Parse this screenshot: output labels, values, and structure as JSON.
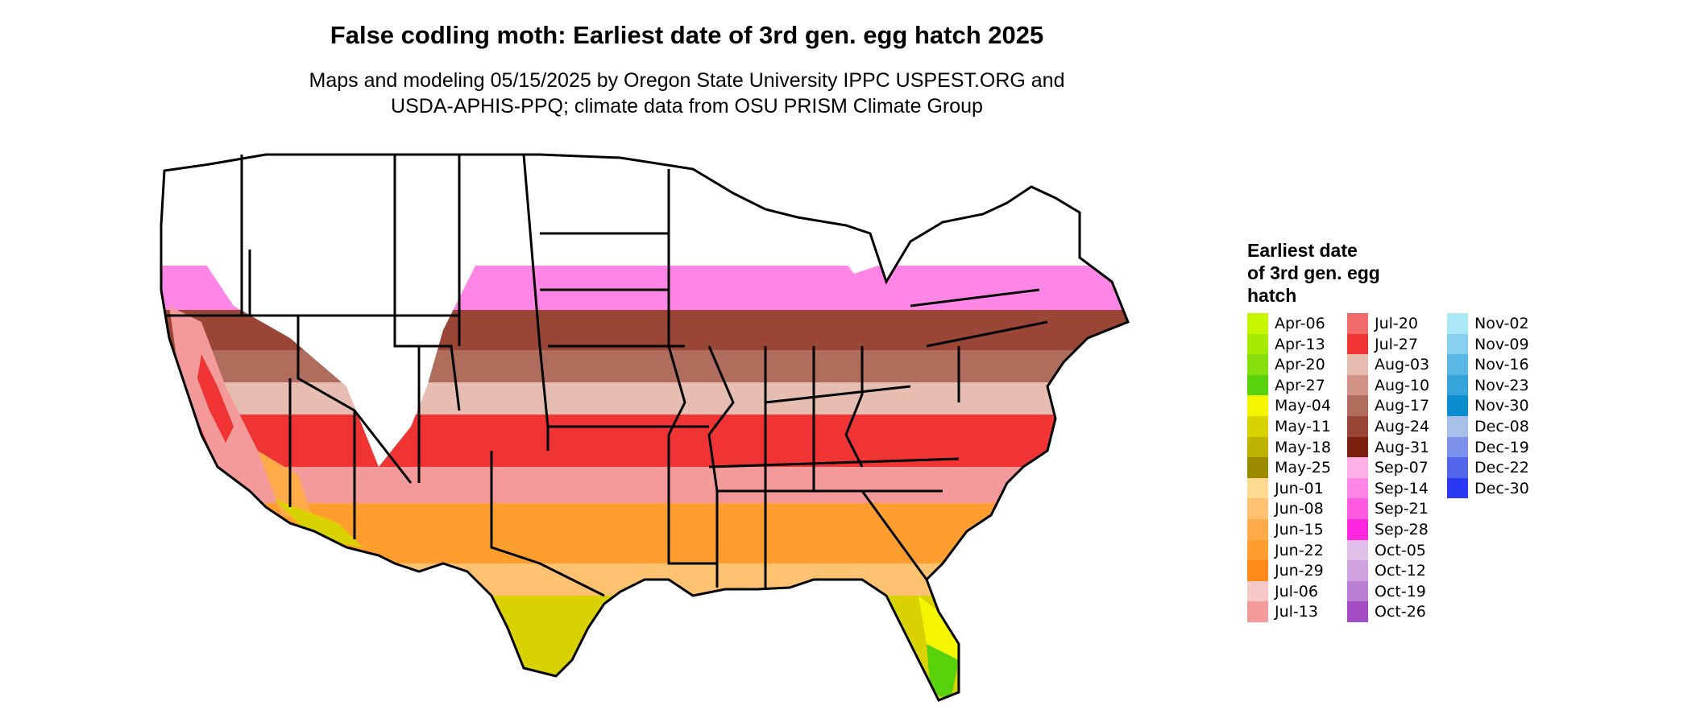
{
  "title": "False codling moth: Earliest date of 3rd gen. egg hatch 2025",
  "subtitle_line1": "Maps and modeling 05/15/2025 by Oregon State University IPPC USPEST.ORG and",
  "subtitle_line2": "USDA-APHIS-PPQ; climate data from OSU PRISM Climate Group",
  "legend": {
    "title_line1": "Earliest date",
    "title_line2": "of 3rd gen. egg",
    "title_line3": "hatch",
    "columns": [
      [
        {
          "label": "Apr-06",
          "color": "#c6f500"
        },
        {
          "label": "Apr-13",
          "color": "#a6ea00"
        },
        {
          "label": "Apr-20",
          "color": "#86de0c"
        },
        {
          "label": "Apr-27",
          "color": "#58d20a"
        },
        {
          "label": "May-04",
          "color": "#f5f500"
        },
        {
          "label": "May-11",
          "color": "#d9d200"
        },
        {
          "label": "May-18",
          "color": "#bfb100"
        },
        {
          "label": "May-25",
          "color": "#9c8c00"
        },
        {
          "label": "Jun-01",
          "color": "#ffd990"
        },
        {
          "label": "Jun-08",
          "color": "#ffc270"
        },
        {
          "label": "Jun-15",
          "color": "#ffab4a"
        },
        {
          "label": "Jun-22",
          "color": "#ff9d2e"
        },
        {
          "label": "Jun-29",
          "color": "#ff8a1a"
        },
        {
          "label": "Jul-06",
          "color": "#f6c8c8"
        },
        {
          "label": "Jul-13",
          "color": "#f49a9a"
        }
      ],
      [
        {
          "label": "Jul-20",
          "color": "#f06a6a"
        },
        {
          "label": "Jul-27",
          "color": "#f03434"
        },
        {
          "label": "Aug-03",
          "color": "#e7bdb2"
        },
        {
          "label": "Aug-10",
          "color": "#d19484"
        },
        {
          "label": "Aug-17",
          "color": "#b06c5c"
        },
        {
          "label": "Aug-24",
          "color": "#9a4636"
        },
        {
          "label": "Aug-31",
          "color": "#7d2010"
        },
        {
          "label": "Sep-07",
          "color": "#ffb0e6"
        },
        {
          "label": "Sep-14",
          "color": "#ff86e6"
        },
        {
          "label": "Sep-21",
          "color": "#ff5ae0"
        },
        {
          "label": "Sep-28",
          "color": "#ff26e2"
        },
        {
          "label": "Oct-05",
          "color": "#e0c0ea"
        },
        {
          "label": "Oct-12",
          "color": "#d0a2e0"
        },
        {
          "label": "Oct-19",
          "color": "#bb80d4"
        },
        {
          "label": "Oct-26",
          "color": "#a44cc4"
        }
      ],
      [
        {
          "label": "Nov-02",
          "color": "#aae8f8"
        },
        {
          "label": "Nov-09",
          "color": "#86d0ee"
        },
        {
          "label": "Nov-16",
          "color": "#5ab8e4"
        },
        {
          "label": "Nov-23",
          "color": "#34a4da"
        },
        {
          "label": "Nov-30",
          "color": "#0a8ed0"
        },
        {
          "label": "Dec-08",
          "color": "#a6c0ea"
        },
        {
          "label": "Dec-19",
          "color": "#7c92ea"
        },
        {
          "label": "Dec-22",
          "color": "#5266ec"
        },
        {
          "label": "Dec-30",
          "color": "#2a3af4"
        }
      ]
    ]
  }
}
